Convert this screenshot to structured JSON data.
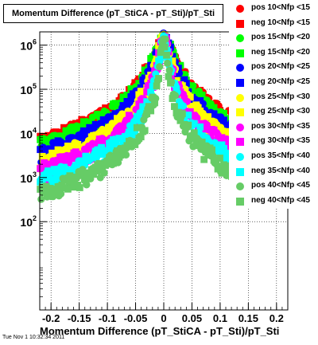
{
  "chart_data": {
    "type": "scatter",
    "title": "Momentum Difference (pT_StiCA - pT_Sti)/pT_Sti",
    "xlabel": "Momentum Difference (pT_StiCA - pT_Sti)/pT_Sti",
    "ylabel": "",
    "xlim": [
      -0.22,
      0.22
    ],
    "ylim": [
      1,
      2000000
    ],
    "y_scale": "log",
    "grid": true,
    "legend_position": "right",
    "x_ticks": [
      "-0.2",
      "-0.15",
      "-0.1",
      "-0.05",
      "0",
      "0.05",
      "0.1",
      "0.15",
      "0.2"
    ],
    "x_tick_values": [
      -0.2,
      -0.15,
      -0.1,
      -0.05,
      0,
      0.05,
      0.1,
      0.15,
      0.2
    ],
    "y_ticks": [
      {
        "base": "10",
        "exp": "2",
        "value": 100
      },
      {
        "base": "10",
        "exp": "3",
        "value": 1000
      },
      {
        "base": "10",
        "exp": "4",
        "value": 10000
      },
      {
        "base": "10",
        "exp": "5",
        "value": 100000
      },
      {
        "base": "10",
        "exp": "6",
        "value": 1000000
      }
    ],
    "series": [
      {
        "name": "pos 10<Nfp <15",
        "color": "#ff0000",
        "marker": "circle",
        "peak": 1000000,
        "width": 0.026
      },
      {
        "name": "neg 10<Nfp <15",
        "color": "#ff0000",
        "marker": "square",
        "peak": 1000000,
        "width": 0.026
      },
      {
        "name": "pos 15<Nfp <20",
        "color": "#00ff00",
        "marker": "circle",
        "peak": 1200000,
        "width": 0.022
      },
      {
        "name": "neg 15<Nfp <20",
        "color": "#00ff00",
        "marker": "square",
        "peak": 1200000,
        "width": 0.022
      },
      {
        "name": "pos 20<Nfp <25",
        "color": "#0000ff",
        "marker": "circle",
        "peak": 1300000,
        "width": 0.017
      },
      {
        "name": "neg 20<Nfp <25",
        "color": "#0000ff",
        "marker": "square",
        "peak": 1300000,
        "width": 0.017
      },
      {
        "name": "pos 25<Nfp <30",
        "color": "#ffff00",
        "marker": "circle",
        "peak": 1400000,
        "width": 0.013
      },
      {
        "name": "neg 25<Nfp <30",
        "color": "#ffff00",
        "marker": "square",
        "peak": 1400000,
        "width": 0.013
      },
      {
        "name": "pos 30<Nfp <35",
        "color": "#ff00ff",
        "marker": "circle",
        "peak": 1500000,
        "width": 0.01
      },
      {
        "name": "neg 30<Nfp <35",
        "color": "#ff00ff",
        "marker": "square",
        "peak": 1500000,
        "width": 0.01
      },
      {
        "name": "pos 35<Nfp <40",
        "color": "#00ffff",
        "marker": "circle",
        "peak": 1600000,
        "width": 0.0075
      },
      {
        "name": "neg 35<Nfp <40",
        "color": "#00ffff",
        "marker": "square",
        "peak": 1600000,
        "width": 0.0075
      },
      {
        "name": "pos 40<Nfp <45",
        "color": "#66cc66",
        "marker": "circle",
        "peak": 1600000,
        "width": 0.0055
      },
      {
        "name": "neg 40<Nfp <45",
        "color": "#66cc66",
        "marker": "square",
        "peak": 1600000,
        "width": 0.0055
      }
    ]
  },
  "footer": {
    "date": "Tue Nov  1 10:32:34 2011"
  }
}
